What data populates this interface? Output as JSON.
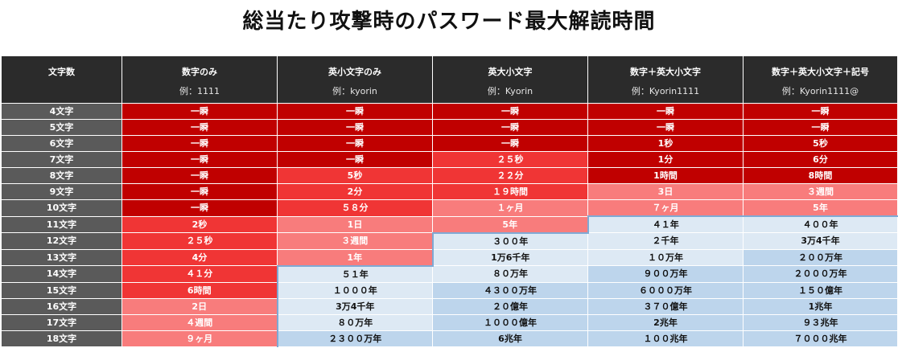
{
  "title": "総当たり攻撃時のパスワード最大解読時間",
  "header": [
    {
      "main": "文字数",
      "sub": ""
    },
    {
      "main": "数字のみ",
      "sub": "例：1111"
    },
    {
      "main": "英小文字のみ",
      "sub": "例：kyorin"
    },
    {
      "main": "英大小文字",
      "sub": "例：Kyorin"
    },
    {
      "main": "数字＋英大小文字",
      "sub": "例：Kyorin1111"
    },
    {
      "main": "数字＋英大小文字＋記号",
      "sub": "例：Kyorin1111@"
    }
  ],
  "rows": [
    {
      "label": "4文字",
      "cells": [
        "一瞬",
        "一瞬",
        "一瞬",
        "一瞬",
        "一瞬"
      ]
    },
    {
      "label": "5文字",
      "cells": [
        "一瞬",
        "一瞬",
        "一瞬",
        "一瞬",
        "一瞬"
      ]
    },
    {
      "label": "6文字",
      "cells": [
        "一瞬",
        "一瞬",
        "一瞬",
        "1秒",
        "5秒"
      ]
    },
    {
      "label": "7文字",
      "cells": [
        "一瞬",
        "一瞬",
        "２５秒",
        "1分",
        "6分"
      ]
    },
    {
      "label": "8文字",
      "cells": [
        "一瞬",
        "5秒",
        "２２分",
        "1時間",
        "8時間"
      ]
    },
    {
      "label": "9文字",
      "cells": [
        "一瞬",
        "2分",
        "１９時間",
        "3日",
        "３週間"
      ]
    },
    {
      "label": "10文字",
      "cells": [
        "一瞬",
        "５８分",
        "１ヶ月",
        "７ヶ月",
        "5年"
      ]
    },
    {
      "label": "11文字",
      "cells": [
        "2秒",
        "1日",
        "5年",
        "４１年",
        "４００年"
      ]
    },
    {
      "label": "12文字",
      "cells": [
        "２５秒",
        "３週間",
        "３００年",
        "２千年",
        "3万4千年"
      ]
    },
    {
      "label": "13文字",
      "cells": [
        "4分",
        "1年",
        "1万6千年",
        "１０万年",
        "２００万年"
      ]
    },
    {
      "label": "14文字",
      "cells": [
        "４１分",
        "５１年",
        "８０万年",
        "９００万年",
        "２０００万年"
      ]
    },
    {
      "label": "15文字",
      "cells": [
        "6時間",
        "１０００年",
        "４３００万年",
        "６０００万年",
        "１５０億年"
      ]
    },
    {
      "label": "16文字",
      "cells": [
        "2日",
        "3万4千年",
        "２０億年",
        "３７０億年",
        "1兆年"
      ]
    },
    {
      "label": "17文字",
      "cells": [
        "４週間",
        "８０万年",
        "１０００億年",
        "2兆年",
        "９３兆年"
      ]
    },
    {
      "label": "18文字",
      "cells": [
        "９ヶ月",
        "２３００万年",
        "6兆年",
        "１００兆年",
        "７０００兆年"
      ]
    }
  ],
  "cell_colors": [
    [
      "dark",
      "dark",
      "dark",
      "dark",
      "dark"
    ],
    [
      "dark",
      "dark",
      "dark",
      "dark",
      "dark"
    ],
    [
      "dark",
      "dark",
      "dark",
      "dark",
      "dark"
    ],
    [
      "dark",
      "dark",
      "mid",
      "dark",
      "dark"
    ],
    [
      "dark",
      "mid",
      "mid",
      "dark",
      "dark"
    ],
    [
      "dark",
      "mid",
      "mid",
      "light",
      "light"
    ],
    [
      "dark",
      "mid",
      "light",
      "light",
      "light"
    ],
    [
      "mid",
      "light",
      "light",
      "pale",
      "pale"
    ],
    [
      "mid",
      "light",
      "pale",
      "pale",
      "pale"
    ],
    [
      "mid",
      "light",
      "pale",
      "pale",
      "blue"
    ],
    [
      "mid",
      "pale",
      "pale",
      "blue",
      "blue"
    ],
    [
      "mid",
      "pale",
      "blue",
      "blue",
      "blue"
    ],
    [
      "light",
      "pale",
      "blue",
      "blue",
      "blue"
    ],
    [
      "light",
      "pale",
      "blue",
      "blue",
      "blue"
    ],
    [
      "light",
      "blue",
      "blue",
      "blue",
      "blue"
    ]
  ]
}
